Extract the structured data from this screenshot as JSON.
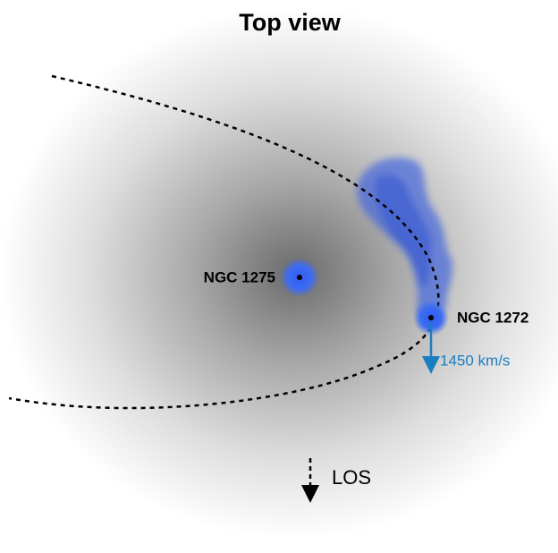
{
  "title": "Top view",
  "nodes": [
    {
      "label": "NGC 1275"
    },
    {
      "label": "NGC 1272"
    }
  ],
  "velocity": {
    "label": "1450 km/s"
  },
  "los": {
    "label": "LOS"
  }
}
